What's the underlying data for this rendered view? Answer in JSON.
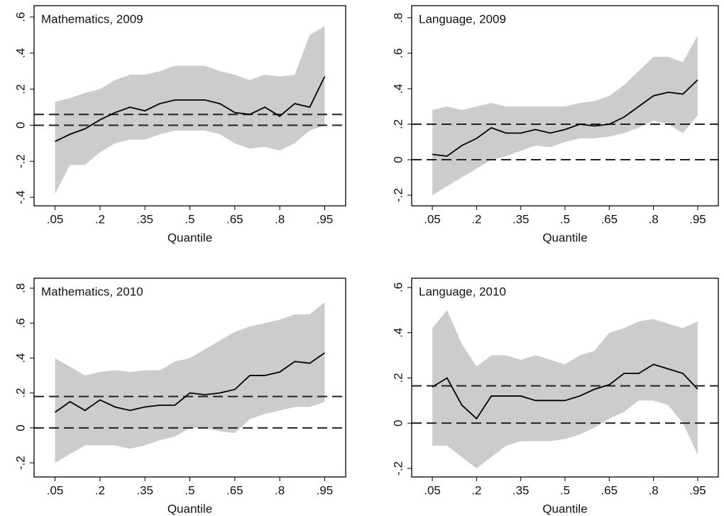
{
  "chart_data": [
    {
      "type": "line",
      "title": "Mathematics, 2009",
      "xlabel": "Quantile",
      "x": [
        0.05,
        0.1,
        0.15,
        0.2,
        0.25,
        0.3,
        0.35,
        0.4,
        0.45,
        0.5,
        0.55,
        0.6,
        0.65,
        0.7,
        0.75,
        0.8,
        0.85,
        0.9,
        0.95
      ],
      "values": [
        -0.09,
        -0.05,
        -0.02,
        0.03,
        0.07,
        0.1,
        0.08,
        0.12,
        0.14,
        0.14,
        0.14,
        0.12,
        0.07,
        0.06,
        0.1,
        0.05,
        0.12,
        0.1,
        0.27
      ],
      "lower": [
        -0.38,
        -0.22,
        -0.22,
        -0.15,
        -0.1,
        -0.08,
        -0.08,
        -0.05,
        -0.03,
        -0.03,
        -0.03,
        -0.05,
        -0.1,
        -0.13,
        -0.12,
        -0.14,
        -0.1,
        -0.03,
        0.0
      ],
      "upper": [
        0.13,
        0.15,
        0.18,
        0.2,
        0.25,
        0.28,
        0.28,
        0.3,
        0.33,
        0.33,
        0.33,
        0.3,
        0.28,
        0.25,
        0.28,
        0.27,
        0.28,
        0.5,
        0.55
      ],
      "hlines": [
        0.06,
        0
      ],
      "color": "#000000",
      "band_color": "#cccccc",
      "xlim": [
        -0.02,
        1.02
      ],
      "ylim": [
        -0.447,
        0.663
      ],
      "xticks": [
        {
          "value": 0.05,
          "label": ".05"
        },
        {
          "value": 0.2,
          "label": ".2"
        },
        {
          "value": 0.35,
          "label": ".35"
        },
        {
          "value": 0.5,
          "label": ".5"
        },
        {
          "value": 0.65,
          "label": ".65"
        },
        {
          "value": 0.8,
          "label": ".8"
        },
        {
          "value": 0.95,
          "label": ".95"
        }
      ],
      "yticks": [
        {
          "value": -0.4,
          "label": "-.4"
        },
        {
          "value": -0.2,
          "label": "-.2"
        },
        0,
        {
          "value": 0.2,
          "label": ".2"
        },
        {
          "value": 0.4,
          "label": ".4"
        },
        {
          "value": 0.6,
          "label": ".6"
        }
      ]
    },
    {
      "type": "line",
      "title": "Language, 2009",
      "xlabel": "Quantile",
      "x": [
        0.05,
        0.1,
        0.15,
        0.2,
        0.25,
        0.3,
        0.35,
        0.4,
        0.45,
        0.5,
        0.55,
        0.6,
        0.65,
        0.7,
        0.75,
        0.8,
        0.85,
        0.9,
        0.95
      ],
      "values": [
        0.03,
        0.02,
        0.08,
        0.12,
        0.18,
        0.15,
        0.15,
        0.17,
        0.15,
        0.17,
        0.2,
        0.19,
        0.2,
        0.24,
        0.3,
        0.36,
        0.38,
        0.37,
        0.45
      ],
      "lower": [
        -0.2,
        -0.15,
        -0.1,
        -0.05,
        0.0,
        0.02,
        0.05,
        0.08,
        0.07,
        0.1,
        0.12,
        0.12,
        0.13,
        0.15,
        0.18,
        0.22,
        0.2,
        0.15,
        0.25
      ],
      "upper": [
        0.28,
        0.3,
        0.28,
        0.3,
        0.32,
        0.3,
        0.3,
        0.3,
        0.3,
        0.3,
        0.32,
        0.33,
        0.36,
        0.42,
        0.5,
        0.58,
        0.58,
        0.55,
        0.7
      ],
      "hlines": [
        0.2,
        0
      ],
      "color": "#000000",
      "band_color": "#cccccc",
      "xlim": [
        -0.02,
        1.02
      ],
      "ylim": [
        -0.26,
        0.868
      ],
      "xticks": [
        {
          "value": 0.05,
          "label": ".05"
        },
        {
          "value": 0.2,
          "label": ".2"
        },
        {
          "value": 0.35,
          "label": ".35"
        },
        {
          "value": 0.5,
          "label": ".5"
        },
        {
          "value": 0.65,
          "label": ".65"
        },
        {
          "value": 0.8,
          "label": ".8"
        },
        {
          "value": 0.95,
          "label": ".95"
        }
      ],
      "yticks": [
        {
          "value": -0.2,
          "label": "-.2"
        },
        0,
        {
          "value": 0.2,
          "label": ".2"
        },
        {
          "value": 0.4,
          "label": ".4"
        },
        {
          "value": 0.6,
          "label": ".6"
        },
        {
          "value": 0.8,
          "label": ".8"
        }
      ]
    },
    {
      "type": "line",
      "title": "Mathematics, 2010",
      "xlabel": "Quantile",
      "x": [
        0.05,
        0.1,
        0.15,
        0.2,
        0.25,
        0.3,
        0.35,
        0.4,
        0.45,
        0.5,
        0.55,
        0.6,
        0.65,
        0.7,
        0.75,
        0.8,
        0.85,
        0.9,
        0.95
      ],
      "values": [
        0.09,
        0.15,
        0.1,
        0.16,
        0.12,
        0.1,
        0.12,
        0.13,
        0.13,
        0.2,
        0.19,
        0.2,
        0.22,
        0.3,
        0.3,
        0.32,
        0.38,
        0.37,
        0.43
      ],
      "lower": [
        -0.2,
        -0.15,
        -0.1,
        -0.1,
        -0.1,
        -0.12,
        -0.1,
        -0.07,
        -0.05,
        0.0,
        0.0,
        -0.02,
        -0.03,
        0.05,
        0.08,
        0.1,
        0.12,
        0.12,
        0.15
      ],
      "upper": [
        0.4,
        0.35,
        0.3,
        0.32,
        0.33,
        0.32,
        0.33,
        0.33,
        0.38,
        0.4,
        0.45,
        0.5,
        0.55,
        0.58,
        0.6,
        0.62,
        0.65,
        0.65,
        0.72
      ],
      "hlines": [
        0.18,
        0
      ],
      "color": "#000000",
      "band_color": "#cccccc",
      "xlim": [
        -0.02,
        1.02
      ],
      "ylim": [
        -0.281,
        0.857
      ],
      "xticks": [
        {
          "value": 0.05,
          "label": ".05"
        },
        {
          "value": 0.2,
          "label": ".2"
        },
        {
          "value": 0.35,
          "label": ".35"
        },
        {
          "value": 0.5,
          "label": ".5"
        },
        {
          "value": 0.65,
          "label": ".65"
        },
        {
          "value": 0.8,
          "label": ".8"
        },
        {
          "value": 0.95,
          "label": ".95"
        }
      ],
      "yticks": [
        {
          "value": -0.2,
          "label": "-.2"
        },
        0,
        {
          "value": 0.2,
          "label": ".2"
        },
        {
          "value": 0.4,
          "label": ".4"
        },
        {
          "value": 0.6,
          "label": ".6"
        },
        {
          "value": 0.8,
          "label": ".8"
        }
      ]
    },
    {
      "type": "line",
      "title": "Language, 2010",
      "xlabel": "Quantile",
      "x": [
        0.05,
        0.1,
        0.15,
        0.2,
        0.25,
        0.3,
        0.35,
        0.4,
        0.45,
        0.5,
        0.55,
        0.6,
        0.65,
        0.7,
        0.75,
        0.8,
        0.85,
        0.9,
        0.95
      ],
      "values": [
        0.16,
        0.2,
        0.08,
        0.02,
        0.12,
        0.12,
        0.12,
        0.1,
        0.1,
        0.1,
        0.12,
        0.15,
        0.17,
        0.22,
        0.22,
        0.26,
        0.24,
        0.22,
        0.15
      ],
      "lower": [
        -0.1,
        -0.1,
        -0.15,
        -0.2,
        -0.15,
        -0.1,
        -0.08,
        -0.08,
        -0.08,
        -0.07,
        -0.05,
        -0.02,
        0.02,
        0.05,
        0.1,
        0.1,
        0.08,
        0.0,
        -0.14
      ],
      "upper": [
        0.42,
        0.5,
        0.35,
        0.25,
        0.3,
        0.3,
        0.28,
        0.3,
        0.28,
        0.26,
        0.3,
        0.32,
        0.4,
        0.42,
        0.45,
        0.46,
        0.44,
        0.42,
        0.45
      ],
      "hlines": [
        0.165,
        0
      ],
      "color": "#000000",
      "band_color": "#cccccc",
      "xlim": [
        -0.02,
        1.02
      ],
      "ylim": [
        -0.238,
        0.641
      ],
      "xticks": [
        {
          "value": 0.05,
          "label": ".05"
        },
        {
          "value": 0.2,
          "label": ".2"
        },
        {
          "value": 0.35,
          "label": ".35"
        },
        {
          "value": 0.5,
          "label": ".5"
        },
        {
          "value": 0.65,
          "label": ".65"
        },
        {
          "value": 0.8,
          "label": ".8"
        },
        {
          "value": 0.95,
          "label": ".95"
        }
      ],
      "yticks": [
        {
          "value": -0.2,
          "label": "-.2"
        },
        0,
        {
          "value": 0.2,
          "label": ".2"
        },
        {
          "value": 0.4,
          "label": ".4"
        },
        {
          "value": 0.6,
          "label": ".6"
        }
      ]
    }
  ]
}
